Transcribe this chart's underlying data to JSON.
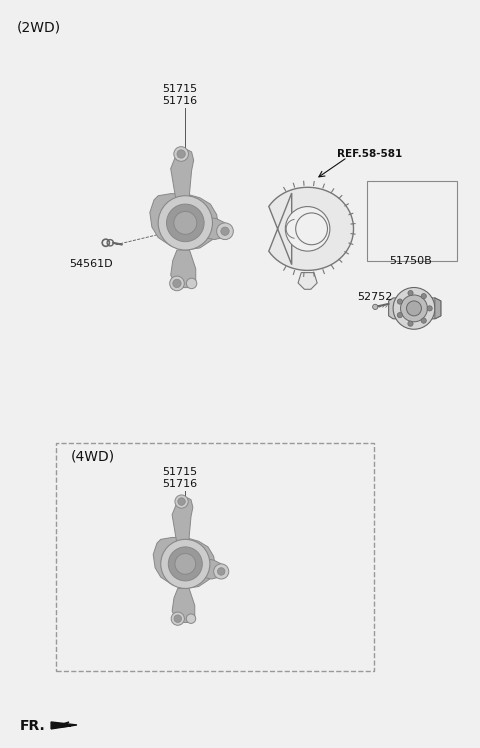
{
  "bg_color": "#f0f0f0",
  "title_2wd": "(2WD)",
  "title_4wd": "(4WD)",
  "fr_label": "FR.",
  "label_51715_2wd": "51715",
  "label_51716_2wd": "51716",
  "label_54561D": "54561D",
  "label_ref": "REF.58-581",
  "label_51750B": "51750B",
  "label_52752": "52752",
  "label_51715_4wd": "51715",
  "label_51716_4wd": "51716",
  "part_color_base": "#b0b0b0",
  "part_color_light": "#cccccc",
  "part_color_dark": "#888888",
  "part_color_shadow": "#999999",
  "line_color": "#555555",
  "text_color": "#111111",
  "dashed_box_color": "#999999"
}
